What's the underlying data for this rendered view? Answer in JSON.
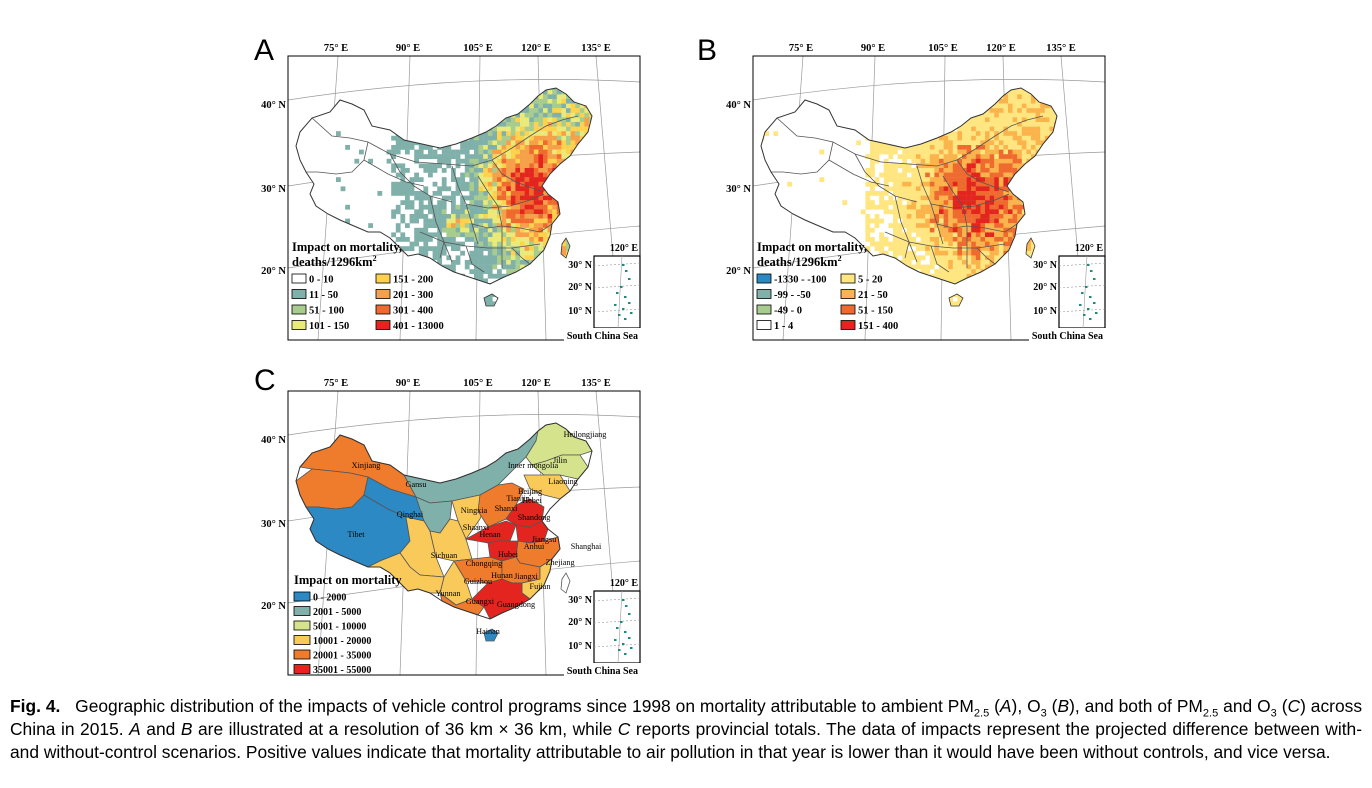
{
  "colors": {
    "land_fill": "#ffffff",
    "border": "#555555",
    "graticule": "#9a9a9a",
    "frame": "#000000",
    "scs_islands": "#1e8a7e"
  },
  "graticule_labels": {
    "lon": [
      "75° E",
      "90° E",
      "105° E",
      "120° E",
      "135° E"
    ],
    "lat": [
      "40° N",
      "30° N",
      "20° N"
    ],
    "inset_lon": "120° E",
    "inset_lat": [
      "30° N",
      "20° N",
      "10° N"
    ],
    "inset_name": "South China Sea"
  },
  "panels": [
    {
      "id": "A",
      "letter": "A",
      "legend_title_1": "Impact on mortality,",
      "legend_title_2": "deaths/1296km",
      "legend_title_sup": "2",
      "legend": [
        {
          "label": "0 - 10",
          "color": "#ffffff"
        },
        {
          "label": "11 - 50",
          "color": "#7fb0aa"
        },
        {
          "label": "51 - 100",
          "color": "#a8cc8e"
        },
        {
          "label": "101 - 150",
          "color": "#eaea7a"
        },
        {
          "label": "151 - 200",
          "color": "#ffd24d"
        },
        {
          "label": "201 - 300",
          "color": "#f6a04a"
        },
        {
          "label": "301 - 400",
          "color": "#ef6a2e"
        },
        {
          "label": "401 - 13000",
          "color": "#e3241f"
        }
      ]
    },
    {
      "id": "B",
      "letter": "B",
      "legend_title_1": "Impact on mortality,",
      "legend_title_2": "deaths/1296km",
      "legend_title_sup": "2",
      "legend": [
        {
          "label": "-1330 - -100",
          "color": "#2c89c3"
        },
        {
          "label": "-99 - -50",
          "color": "#7fb0aa"
        },
        {
          "label": "-49 - 0",
          "color": "#a8cc8e"
        },
        {
          "label": "1 - 4",
          "color": "#ffffff"
        },
        {
          "label": "5 - 20",
          "color": "#ffe680"
        },
        {
          "label": "21 - 50",
          "color": "#fbb44c"
        },
        {
          "label": "51 - 150",
          "color": "#ef6a2e"
        },
        {
          "label": "151 - 400",
          "color": "#e3241f"
        }
      ]
    },
    {
      "id": "C",
      "letter": "C",
      "legend_title_1": "Impact on mortality",
      "legend": [
        {
          "label": "0 - 2000",
          "color": "#2c89c3"
        },
        {
          "label": "2001 - 5000",
          "color": "#7fb0aa"
        },
        {
          "label": "5001 - 10000",
          "color": "#d6e38d"
        },
        {
          "label": "10001 - 20000",
          "color": "#f9c95a"
        },
        {
          "label": "20001 - 35000",
          "color": "#ef7b2c"
        },
        {
          "label": "35001 - 55000",
          "color": "#e3241f"
        }
      ],
      "provinces": [
        "Heilongjiang",
        "Jilin",
        "Inner mongolia",
        "Liaoning",
        "Xinjiang",
        "Gansu",
        "Hebei",
        "Beijing",
        "Tianjin",
        "Qinghai",
        "Ningxia",
        "Shanxi",
        "Shandong",
        "Tibet",
        "Shaanxi",
        "Henan",
        "Jiangsu",
        "Shanghai",
        "Anhui",
        "Sichuan",
        "Hubei",
        "Chongqing",
        "Zhejiang",
        "Hunan",
        "Jiangxi",
        "Guizhou",
        "Fujian",
        "Yunnan",
        "Guangxi",
        "Guangdong",
        "Hainan"
      ]
    }
  ],
  "caption": {
    "fig_label": "Fig. 4.",
    "s1": "Geographic distribution of the impacts of vehicle control programs since 1998 on mortality attributable to ambient PM",
    "pm_sub": "2.5",
    "o3_sub": "3",
    "s2": " (",
    "A": "A",
    "s3": "), O",
    "s4": " (",
    "B": "B",
    "s5": "), and both of PM",
    "s6": " and O",
    "s7": " (",
    "C": "C",
    "s8": ") across China in 2015. ",
    "A2": "A",
    "s9": " and ",
    "B2": "B",
    "s10": " are illustrated at a resolution of 36 km × 36 km, while ",
    "C2": "C",
    "s11": " reports provincial totals. The data of impacts represent the projected difference between with- and without-control scenarios. Positive values indicate that mortality attributable to air pollution in that year is lower than it would have been without controls, and vice versa."
  }
}
